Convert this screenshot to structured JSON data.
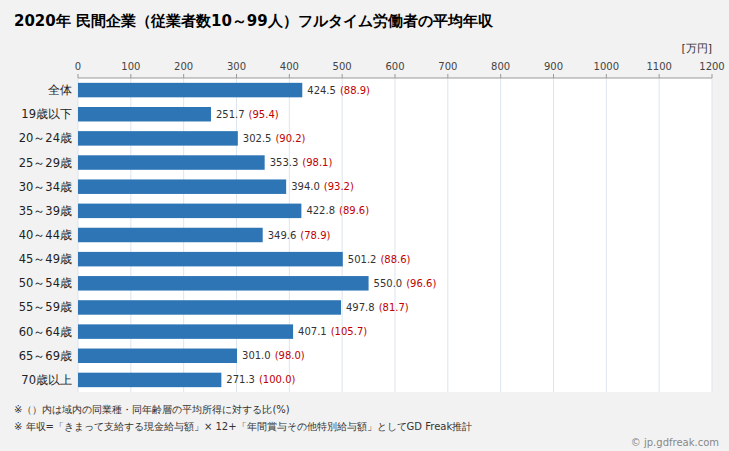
{
  "chart_data": {
    "type": "bar",
    "orientation": "horizontal",
    "title": "2020年 民間企業（従業者数10～99人）フルタイム労働者の平均年収",
    "xlabel": "[万円]",
    "categories": [
      "全体",
      "19歳以下",
      "20～24歳",
      "25～29歳",
      "30～34歳",
      "35～39歳",
      "40～44歳",
      "45～49歳",
      "50～54歳",
      "55～59歳",
      "60～64歳",
      "65～69歳",
      "70歳以上"
    ],
    "values": [
      424.5,
      251.7,
      302.5,
      353.3,
      394.0,
      422.8,
      349.6,
      501.2,
      550.0,
      497.8,
      407.1,
      301.0,
      271.3
    ],
    "value_labels": [
      "424.5",
      "251.7",
      "302.5",
      "353.3",
      "394.0",
      "422.8",
      "349.6",
      "501.2",
      "550.0",
      "497.8",
      "407.1",
      "301.0",
      "271.3"
    ],
    "ratio_labels": [
      "(88.9)",
      "(95.4)",
      "(90.2)",
      "(98.1)",
      "(93.2)",
      "(89.6)",
      "(78.9)",
      "(88.6)",
      "(96.6)",
      "(81.7)",
      "(105.7)",
      "(98.0)",
      "(100.0)"
    ],
    "data_labels": true,
    "color": "#2E75B6",
    "xlim": [
      0,
      1200
    ],
    "xticks": [
      0,
      100,
      200,
      300,
      400,
      500,
      600,
      700,
      800,
      900,
      1000,
      1100,
      1200
    ],
    "grid": true,
    "annotations": [
      "※（）内は域内の同業種・同年齢層の平均所得に対する比(%)",
      "※ 年収=「きまって支給する現金給与額」× 12+「年間賞与その他特別給与額」としてGD Freak推計",
      "© jp.gdfreak.com"
    ]
  }
}
